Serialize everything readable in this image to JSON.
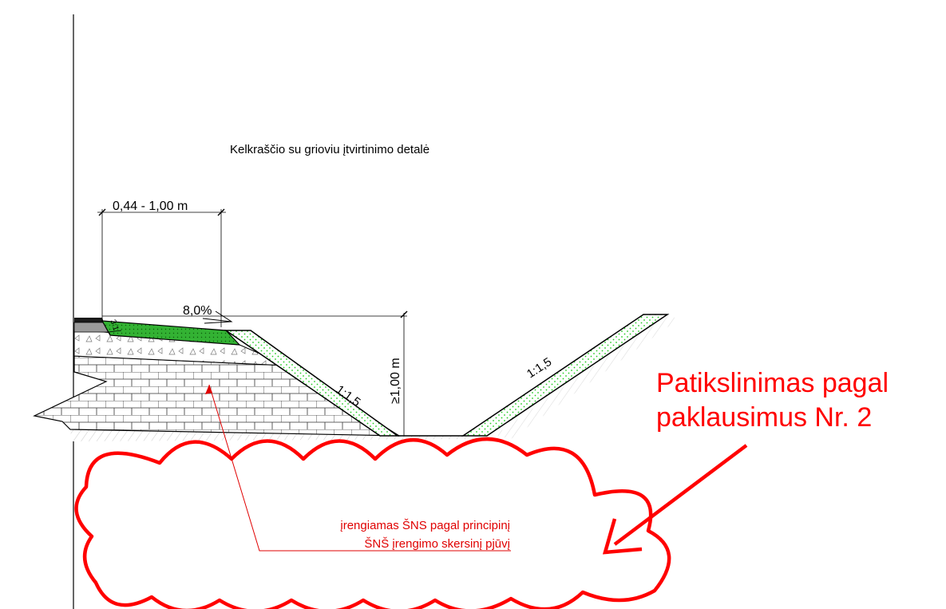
{
  "title": "Kelkraščio su grioviu įtvirtinimo detalė",
  "dimensions": {
    "width_range": "0,44 - 1,00 m",
    "slope_percent": "8,0%",
    "depth": "≥1,00 m",
    "slope_left": "1:1,5",
    "slope_right": "1:1,5",
    "small_slope": "3:1"
  },
  "note": {
    "line1": "įrengiamas ŠNS pagal principinį",
    "line2": "ŠNŠ įrengimo skersinį pjūvį"
  },
  "revision": {
    "line1": "Patikslinimas pagal",
    "line2": "paklausimus Nr. 2"
  },
  "colors": {
    "revision_red": "#ff0000",
    "note_red": "#e00000",
    "green_fill": "#33b233",
    "green_dots": "#22cc22",
    "asphalt": "#1a1a1a",
    "base_gray": "#9a9a9a"
  }
}
